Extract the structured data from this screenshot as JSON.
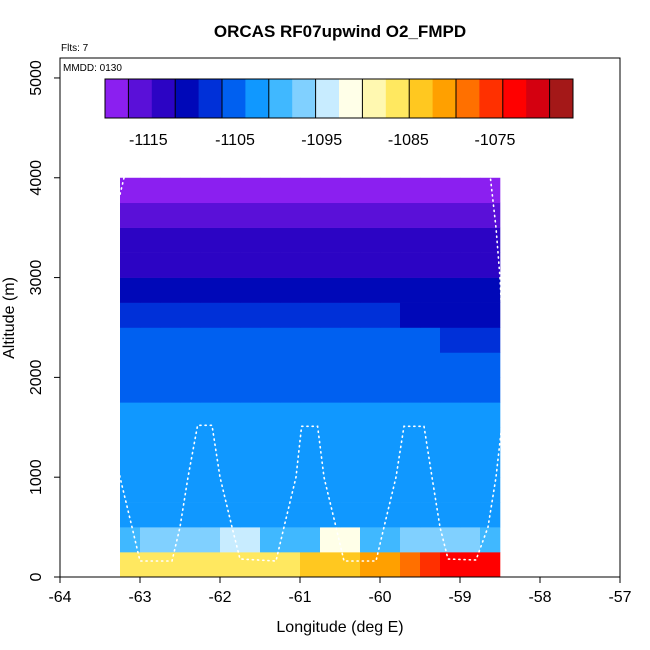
{
  "chart_data": {
    "type": "heatmap",
    "title": "ORCAS RF07upwind O2_FMPD",
    "flts_label": "Flts: 7",
    "mmdd_label": "MMDD: 0130",
    "xlabel": "Longitude (deg E)",
    "ylabel": "Altitude (m)",
    "xlim": [
      -64,
      -57
    ],
    "ylim": [
      0,
      5200
    ],
    "xticks": [
      "-64",
      "-63",
      "-62",
      "-61",
      "-60",
      "-59",
      "-58",
      "-57"
    ],
    "yticks": [
      "0",
      "1000",
      "2000",
      "3000",
      "4000",
      "5000"
    ],
    "colorbar": {
      "range": [
        -1120,
        -1066
      ],
      "tick_values": [
        -1115,
        -1105,
        -1095,
        -1085,
        -1075
      ],
      "tick_labels": [
        "-1115",
        "-1105",
        "-1095",
        "-1085",
        "-1075"
      ],
      "colors": [
        "#8b1ff0",
        "#5a10d8",
        "#2c04c4",
        "#0008b8",
        "#0030d8",
        "#0060f0",
        "#1098ff",
        "#40b8ff",
        "#80d0ff",
        "#c8ecff",
        "#ffffe8",
        "#fff8b0",
        "#ffe860",
        "#ffc820",
        "#ffa000",
        "#ff7000",
        "#ff3000",
        "#ff0000",
        "#d40010",
        "#a41818"
      ]
    },
    "grid": {
      "lon_start": -63.25,
      "lon_step": 0.25,
      "n_cols": 19,
      "alt_start": 0,
      "alt_step": 250,
      "n_rows": 16
    },
    "values": [
      [
        -1087,
        -1087,
        -1087,
        -1087,
        -1087,
        -1086,
        -1086,
        -1085,
        -1085,
        -1084,
        -1084,
        -1083,
        -1082,
        -1080,
        -1078,
        -1076,
        -1074,
        -1074,
        -1074
      ],
      [
        -1100,
        -1096,
        -1097,
        -1098,
        -1098,
        -1095,
        -1094,
        -1100,
        -1101,
        -1101,
        -1093,
        -1093,
        -1099,
        -1099,
        -1097,
        -1097,
        -1098,
        -1098,
        -1099
      ],
      [
        -1102,
        -1102,
        -1102,
        -1102,
        -1102,
        -1102,
        -1102,
        -1102,
        -1102,
        -1102,
        -1102,
        -1102,
        -1102,
        -1102,
        -1102,
        -1102,
        -1102,
        -1102,
        -1102
      ],
      [
        -1102,
        -1102,
        -1102,
        -1102,
        -1102,
        -1102,
        -1102,
        -1102,
        -1102,
        -1102,
        -1102,
        -1102,
        -1102,
        -1102,
        -1102,
        -1102,
        -1102,
        -1102,
        -1102
      ],
      [
        -1102,
        -1102,
        -1102,
        -1102,
        -1102,
        -1102,
        -1102,
        -1102,
        -1102,
        -1102,
        -1102,
        -1102,
        -1102,
        -1102,
        -1102,
        -1102,
        -1102,
        -1102,
        -1102
      ],
      [
        -1103,
        -1103,
        -1103,
        -1103,
        -1103,
        -1103,
        -1103,
        -1103,
        -1103,
        -1103,
        -1103,
        -1103,
        -1103,
        -1103,
        -1103,
        -1103,
        -1103,
        -1103,
        -1103
      ],
      [
        -1103,
        -1103,
        -1103,
        -1103,
        -1103,
        -1103,
        -1103,
        -1103,
        -1103,
        -1103,
        -1103,
        -1103,
        -1103,
        -1103,
        -1103,
        -1103,
        -1103,
        -1103,
        -1103
      ],
      [
        -1104,
        -1104,
        -1104,
        -1104,
        -1104,
        -1104,
        -1104,
        -1104,
        -1104,
        -1104,
        -1104,
        -1104,
        -1104,
        -1104,
        -1104,
        -1104,
        -1104,
        -1104,
        -1105
      ],
      [
        -1104,
        -1104,
        -1104,
        -1104,
        -1104,
        -1104,
        -1104,
        -1104,
        -1104,
        -1104,
        -1104,
        -1104,
        -1104,
        -1104,
        -1104,
        -1104,
        -1104,
        -1105,
        -1105
      ],
      [
        -1106,
        -1106,
        -1106,
        -1106,
        -1106,
        -1106,
        -1106,
        -1106,
        -1106,
        -1106,
        -1106,
        -1106,
        -1106,
        -1106,
        -1106,
        -1106,
        -1107,
        -1107,
        -1108
      ],
      [
        -1109,
        -1109,
        -1109,
        -1109,
        -1109,
        -1109,
        -1109,
        -1109,
        -1109,
        -1109,
        -1109,
        -1109,
        -1109,
        -1109,
        -1110,
        -1110,
        -1110,
        -1110,
        -1111
      ],
      [
        -1111,
        -1111,
        -1111,
        -1111,
        -1111,
        -1111,
        -1111,
        -1111,
        -1111,
        -1111,
        -1111,
        -1111,
        -1111,
        -1111,
        -1111,
        -1111,
        -1111,
        -1111,
        -1111
      ],
      [
        -1113,
        -1113,
        -1113,
        -1113,
        -1113,
        -1113,
        -1113,
        -1113,
        -1113,
        -1113,
        -1113,
        -1113,
        -1113,
        -1113,
        -1113,
        -1113,
        -1113,
        -1113,
        -1112
      ],
      [
        -1114,
        -1114,
        -1114,
        -1114,
        -1114,
        -1114,
        -1114,
        -1113,
        -1113,
        -1113,
        -1114,
        -1114,
        -1114,
        -1114,
        -1114,
        -1113,
        -1113,
        -1113,
        -1113
      ],
      [
        -1116,
        -1116,
        -1117,
        -1117,
        -1117,
        -1117,
        -1117,
        -1117,
        -1117,
        -1117,
        -1117,
        -1117,
        -1117,
        -1117,
        -1117,
        -1117,
        -1116,
        -1116,
        -1116
      ],
      [
        -1119,
        -1119,
        -1119,
        -1119,
        -1119,
        -1119,
        -1119,
        -1119,
        -1119,
        -1119,
        -1119,
        -1119,
        -1119,
        -1119,
        -1119,
        -1119,
        -1119,
        -1119,
        -1119
      ]
    ],
    "flight_track": [
      [
        -63.2,
        4000
      ],
      [
        -63.35,
        3500
      ],
      [
        -63.45,
        3000
      ],
      [
        -63.5,
        2500
      ],
      [
        -63.45,
        2000
      ],
      [
        -63.35,
        1500
      ],
      [
        -63.25,
        1000
      ],
      [
        -63.1,
        500
      ],
      [
        -63.0,
        160
      ],
      [
        -62.6,
        160
      ],
      [
        -62.5,
        500
      ],
      [
        -62.4,
        1000
      ],
      [
        -62.28,
        1520
      ],
      [
        -62.1,
        1520
      ],
      [
        -62.0,
        1000
      ],
      [
        -61.85,
        500
      ],
      [
        -61.75,
        180
      ],
      [
        -61.3,
        160
      ],
      [
        -61.2,
        500
      ],
      [
        -61.05,
        1000
      ],
      [
        -60.98,
        1510
      ],
      [
        -60.78,
        1510
      ],
      [
        -60.7,
        1000
      ],
      [
        -60.55,
        500
      ],
      [
        -60.45,
        160
      ],
      [
        -60.05,
        160
      ],
      [
        -59.95,
        500
      ],
      [
        -59.8,
        1000
      ],
      [
        -59.7,
        1510
      ],
      [
        -59.45,
        1510
      ],
      [
        -59.35,
        1000
      ],
      [
        -59.25,
        500
      ],
      [
        -59.15,
        180
      ],
      [
        -58.8,
        170
      ],
      [
        -58.65,
        500
      ],
      [
        -58.55,
        1000
      ],
      [
        -58.48,
        1500
      ],
      [
        -58.45,
        2000
      ],
      [
        -58.47,
        2500
      ],
      [
        -58.5,
        3000
      ],
      [
        -58.55,
        3500
      ],
      [
        -58.62,
        4000
      ]
    ]
  }
}
